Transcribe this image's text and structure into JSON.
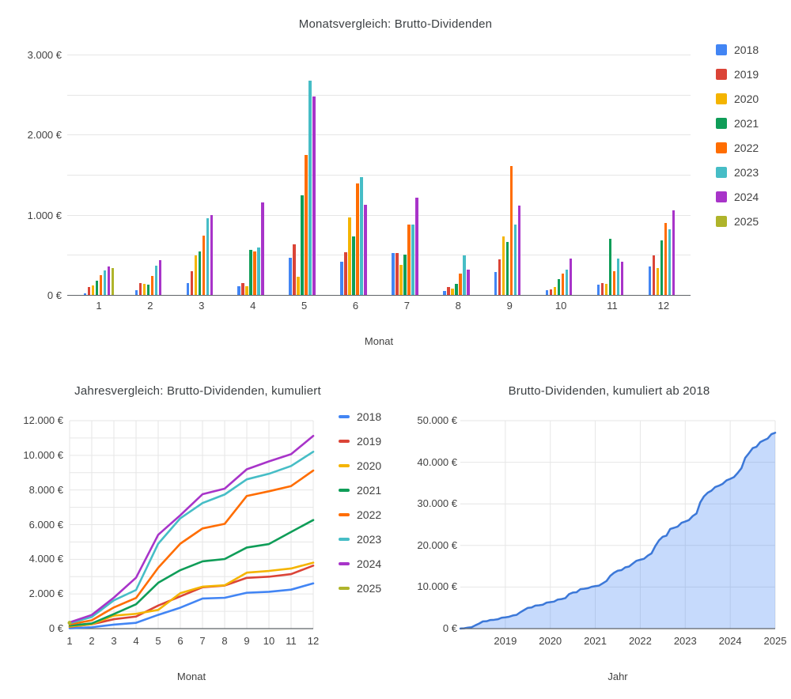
{
  "style": {
    "grid_color": "#e6e6e6",
    "axis_line_color": "#5f6368",
    "tick_color": "#424242",
    "title_color": "#3c4043",
    "area_fill": "rgba(66,133,244,0.30)",
    "area_line": "#3C78D8"
  },
  "chart_data": [
    {
      "type": "bar",
      "title": "Monatsvergleich: Brutto-Dividenden",
      "xlabel": "Monat",
      "ylabel": "",
      "categories": [
        "1",
        "2",
        "3",
        "4",
        "5",
        "6",
        "7",
        "8",
        "9",
        "10",
        "11",
        "12"
      ],
      "ylim": [
        0,
        3000
      ],
      "y_ticks": [
        "0 €",
        "1.000 €",
        "2.000 €",
        "3.000 €"
      ],
      "grid_minor_step": 500,
      "legend_position": "right",
      "currency": "EUR",
      "series": [
        {
          "name": "2018",
          "color": "#4285F4",
          "values": [
            20,
            60,
            150,
            105,
            460,
            415,
            525,
            45,
            290,
            55,
            125,
            360
          ]
        },
        {
          "name": "2019",
          "color": "#DB4437",
          "values": [
            100,
            150,
            295,
            150,
            635,
            530,
            525,
            100,
            445,
            65,
            150,
            490
          ]
        },
        {
          "name": "2020",
          "color": "#F4B400",
          "values": [
            120,
            135,
            495,
            105,
            225,
            965,
            375,
            80,
            730,
            100,
            140,
            335
          ]
        },
        {
          "name": "2021",
          "color": "#0F9D58",
          "values": [
            175,
            125,
            540,
            565,
            1240,
            730,
            505,
            135,
            665,
            200,
            700,
            685
          ]
        },
        {
          "name": "2022",
          "color": "#FF6D01",
          "values": [
            245,
            235,
            745,
            545,
            1745,
            1390,
            875,
            265,
            1610,
            270,
            300,
            895
          ]
        },
        {
          "name": "2023",
          "color": "#46BDC6",
          "values": [
            310,
            365,
            960,
            595,
            2670,
            1470,
            875,
            495,
            875,
            320,
            450,
            820
          ]
        },
        {
          "name": "2024",
          "color": "#A834C9",
          "values": [
            360,
            430,
            1000,
            1150,
            2475,
            1130,
            1210,
            320,
            1120,
            455,
            415,
            1055
          ]
        },
        {
          "name": "2025",
          "color": "#AFB42B",
          "values": [
            335,
            null,
            null,
            null,
            null,
            null,
            null,
            null,
            null,
            null,
            null,
            null
          ]
        }
      ]
    },
    {
      "type": "line",
      "title": "Jahresvergleich: Brutto-Dividenden, kumuliert",
      "xlabel": "Monat",
      "ylabel": "",
      "categories": [
        "1",
        "2",
        "3",
        "4",
        "5",
        "6",
        "7",
        "8",
        "9",
        "10",
        "11",
        "12"
      ],
      "ylim": [
        0,
        12000
      ],
      "y_ticks": [
        "0 €",
        "2.000 €",
        "4.000 €",
        "6.000 €",
        "8.000 €",
        "10.000 €",
        "12.000 €"
      ],
      "grid_minor_step": 1000,
      "legend_position": "right",
      "currency": "EUR",
      "series": [
        {
          "name": "2018",
          "color": "#4285F4",
          "values": [
            20,
            80,
            230,
            335,
            795,
            1210,
            1735,
            1780,
            2070,
            2125,
            2250,
            2610
          ]
        },
        {
          "name": "2019",
          "color": "#DB4437",
          "values": [
            100,
            250,
            545,
            695,
            1330,
            1860,
            2385,
            2485,
            2930,
            2995,
            3145,
            3635
          ]
        },
        {
          "name": "2020",
          "color": "#F4B400",
          "values": [
            120,
            255,
            750,
            855,
            1080,
            2045,
            2420,
            2500,
            3230,
            3330,
            3470,
            3805
          ]
        },
        {
          "name": "2021",
          "color": "#0F9D58",
          "values": [
            175,
            300,
            840,
            1405,
            2645,
            3375,
            3880,
            4015,
            4680,
            4880,
            5580,
            6265
          ]
        },
        {
          "name": "2022",
          "color": "#FF6D01",
          "values": [
            245,
            480,
            1225,
            1770,
            3515,
            4905,
            5780,
            6045,
            7655,
            7925,
            8225,
            9120
          ]
        },
        {
          "name": "2023",
          "color": "#46BDC6",
          "values": [
            310,
            675,
            1635,
            2230,
            4900,
            6370,
            7245,
            7740,
            8615,
            8935,
            9385,
            10205
          ]
        },
        {
          "name": "2024",
          "color": "#A834C9",
          "values": [
            360,
            790,
            1790,
            2940,
            5415,
            6545,
            7755,
            8075,
            9195,
            9650,
            10065,
            11120
          ]
        },
        {
          "name": "2025",
          "color": "#AFB42B",
          "values": [
            335
          ]
        }
      ]
    },
    {
      "type": "area",
      "title": "Brutto-Dividenden, kumuliert ab 2018",
      "xlabel": "Jahr",
      "ylabel": "",
      "x_start": "2018-01",
      "x_end": "2025-01",
      "x_ticks": [
        "2019",
        "2020",
        "2021",
        "2022",
        "2023",
        "2024",
        "2025"
      ],
      "ylim": [
        0,
        50000
      ],
      "y_ticks": [
        "0 €",
        "10.000 €",
        "20.000 €",
        "30.000 €",
        "40.000 €",
        "50.000 €"
      ],
      "currency": "EUR",
      "values": [
        20,
        80,
        230,
        335,
        795,
        1210,
        1735,
        1780,
        2070,
        2125,
        2250,
        2610,
        2710,
        2860,
        3155,
        3305,
        3940,
        4470,
        4995,
        5095,
        5540,
        5605,
        5755,
        6245,
        6365,
        6500,
        6995,
        7100,
        7325,
        8290,
        8665,
        8745,
        9475,
        9575,
        9715,
        10050,
        10225,
        10350,
        10890,
        11455,
        12695,
        13425,
        13930,
        14065,
        14730,
        14930,
        15630,
        16315,
        16560,
        16795,
        17540,
        18085,
        19830,
        21220,
        22095,
        22360,
        23970,
        24240,
        24540,
        25435,
        25745,
        26110,
        27070,
        27665,
        30335,
        31805,
        32680,
        33175,
        34050,
        34370,
        34820,
        35640,
        36000,
        36430,
        37430,
        38580,
        41055,
        42185,
        43395,
        43715,
        44835,
        45290,
        45705,
        46760,
        47095
      ]
    }
  ]
}
